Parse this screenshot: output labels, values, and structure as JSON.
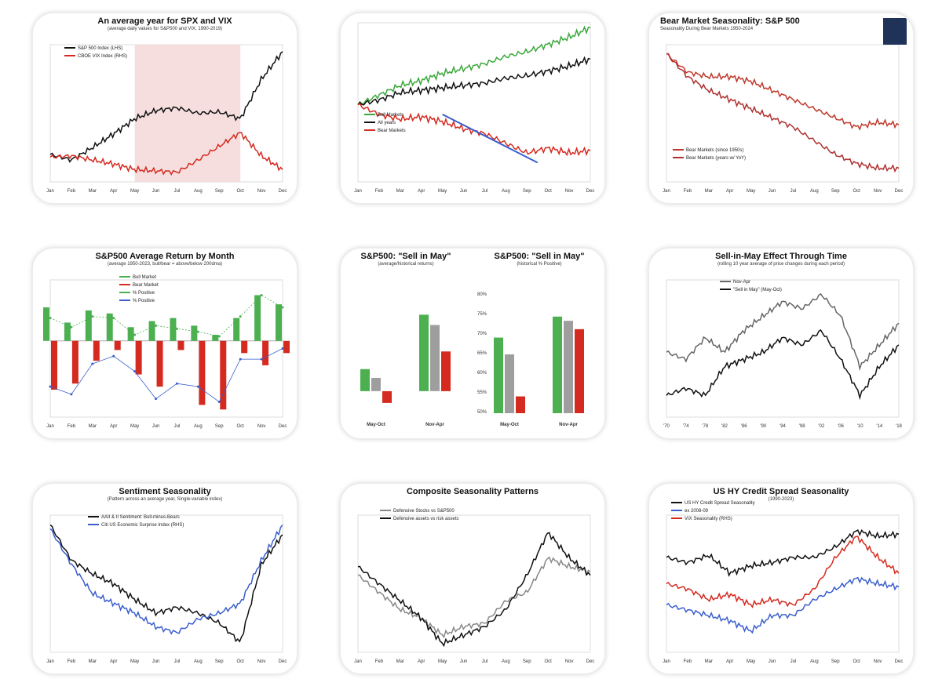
{
  "chart_data": [
    {
      "type": "line",
      "title": "An average year for SPX and VIX",
      "subtitle": "(average daily values for S&P500 and VIX, 1990-2019)",
      "categories": [
        "Jan",
        "Feb",
        "Mar",
        "Apr",
        "May",
        "Jun",
        "Jul",
        "Aug",
        "Sep",
        "Oct",
        "Nov",
        "Dec"
      ],
      "shaded": [
        "May",
        "Oct"
      ],
      "shade_color": "#f6dede",
      "series": [
        {
          "name": "S&P 500 Index (LHS)",
          "color": "#111111",
          "values": [
            100,
            99.6,
            100.5,
            101.5,
            102.6,
            103.2,
            103.4,
            103.0,
            103.1,
            102.6,
            105.5,
            107.5
          ]
        },
        {
          "name": "CBOE VIX Index (RHS)",
          "color": "#d42a1f",
          "values": [
            99.8,
            99.9,
            99.6,
            99.3,
            98.9,
            98.8,
            98.7,
            99.6,
            100.6,
            101.6,
            99.9,
            98.9
          ]
        }
      ],
      "ylim": [
        98,
        108
      ]
    },
    {
      "type": "line",
      "title": "",
      "subtitle": "",
      "categories": [
        "Jan",
        "Feb",
        "Mar",
        "Apr",
        "May",
        "Jun",
        "Jul",
        "Aug",
        "Sep",
        "Oct",
        "Nov",
        "Dec"
      ],
      "arrow": true,
      "series": [
        {
          "name": "Bull Markets",
          "color": "#3aa83a",
          "values": [
            100,
            102,
            104,
            105,
            106.5,
            107.5,
            108.5,
            110,
            111,
            112.5,
            114,
            116
          ]
        },
        {
          "name": "All years",
          "color": "#111111",
          "values": [
            100,
            101,
            102.5,
            103,
            103.5,
            104,
            104.5,
            105.5,
            106,
            107,
            108,
            109.5
          ]
        },
        {
          "name": "Bear Markets",
          "color": "#d42a1f",
          "values": [
            100,
            98,
            97,
            97.5,
            96.5,
            95,
            94,
            92,
            90,
            91,
            90,
            90.5
          ]
        }
      ],
      "ylim": [
        84,
        117
      ]
    },
    {
      "type": "line",
      "title": "Bear Market Seasonality: S&P 500",
      "subtitle": "Seasonality During Bear Markets 1950-2024",
      "left": true,
      "logo": true,
      "categories": [
        "Jan",
        "Feb",
        "Mar",
        "Apr",
        "May",
        "Jun",
        "Jul",
        "Aug",
        "Sep",
        "Oct",
        "Nov",
        "Dec"
      ],
      "series": [
        {
          "name": "Bear Markets (since 1950s)",
          "color": "#c0392b",
          "values": [
            100,
            96,
            95,
            95,
            94,
            92,
            90,
            88,
            86,
            84,
            85,
            84.5
          ]
        },
        {
          "name": "Bear Markets (years w/ YoY)",
          "color": "#b03030",
          "values": [
            100,
            95,
            92,
            90,
            88,
            86,
            84,
            81,
            78,
            76,
            75,
            75
          ]
        }
      ],
      "ylim": [
        72,
        102
      ]
    },
    {
      "type": "bar",
      "title": "S&P500 Average Return by Month",
      "subtitle": "(average 1950-2023, bull/bear = above/below 200dma)",
      "categories": [
        "Jan",
        "Feb",
        "Mar",
        "Apr",
        "May",
        "Jun",
        "Jul",
        "Aug",
        "Sep",
        "Oct",
        "Nov",
        "Dec"
      ],
      "series": [
        {
          "name": "Bull Market",
          "color": "#4caf50",
          "values": [
            2.2,
            1.2,
            2.0,
            1.8,
            0.9,
            1.3,
            1.5,
            1.0,
            0.4,
            1.5,
            3.0,
            2.4
          ]
        },
        {
          "name": "Bear Market",
          "color": "#d42a1f",
          "values": [
            -3.2,
            -2.8,
            -1.3,
            -0.6,
            -2.2,
            -3.0,
            -0.6,
            -4.2,
            -4.5,
            -0.8,
            -1.6,
            -0.8
          ]
        },
        {
          "name": "% Positive",
          "color": "#4caf50",
          "line": true,
          "values": [
            1.5,
            0.9,
            1.6,
            1.5,
            0.4,
            1.0,
            0.8,
            0.6,
            0.3,
            1.6,
            3.0,
            2.2
          ]
        },
        {
          "name": "% Positive",
          "color": "#3a5fcd",
          "line": true,
          "values": [
            -3.0,
            -3.5,
            -1.5,
            -1.0,
            -2.0,
            -3.8,
            -2.8,
            -3.0,
            -4.0,
            -1.2,
            -1.2,
            -0.5
          ]
        }
      ],
      "ylim": [
        -5,
        4
      ]
    },
    {
      "type": "groupbar",
      "panels": [
        {
          "title": "S&P500: \"Sell in May\"",
          "subtitle": "(average/historical returns)",
          "categories": [
            "May-Oct",
            "Nov-Apr"
          ],
          "values": [
            [
              1.5,
              0.9,
              -0.8
            ],
            [
              5.2,
              4.5,
              2.7
            ]
          ],
          "ylim": [
            -1.5,
            6.5
          ]
        },
        {
          "title": "S&P500: \"Sell in May\"",
          "subtitle": "(historical % Positive)",
          "categories": [
            "May-Oct",
            "Nov-Apr"
          ],
          "values": [
            [
              70,
              66,
              56
            ],
            [
              75,
              74,
              72
            ]
          ],
          "ylim": [
            52,
            80
          ],
          "ticks": [
            "80%",
            "75%",
            "70%",
            "65%",
            "60%",
            "55%",
            "50%"
          ]
        }
      ],
      "colors": [
        "#4caf50",
        "#9e9e9e",
        "#d42a1f"
      ]
    },
    {
      "type": "line",
      "title": "Sell-in-May Effect Through Time",
      "subtitle": "(rolling 10 year average of price changes during each period)",
      "categories": [
        "'70",
        "'74",
        "'78",
        "'82",
        "'86",
        "'90",
        "'94",
        "'98",
        "'02",
        "'06",
        "'10",
        "'14",
        "'18"
      ],
      "series": [
        {
          "name": "Nov-Apr",
          "color": "#666666",
          "values": [
            3,
            2,
            5,
            3,
            6,
            8,
            10,
            9,
            11,
            8,
            1,
            4,
            7
          ]
        },
        {
          "name": "\"Sell in May\" (May-Oct)",
          "color": "#111111",
          "values": [
            -3,
            -2,
            -3,
            1,
            2,
            3,
            5,
            4,
            6,
            2,
            -3,
            1,
            4
          ]
        }
      ],
      "ylim": [
        -6,
        13
      ]
    },
    {
      "type": "line",
      "title": "Sentiment Seasonality",
      "subtitle": "(Pattern across an average year, Single-variable index)",
      "categories": [
        "Jan",
        "Feb",
        "Mar",
        "Apr",
        "May",
        "Jun",
        "Jul",
        "Aug",
        "Sep",
        "Oct",
        "Nov",
        "Dec"
      ],
      "series": [
        {
          "name": "AAII & II Sentiment: Bull-minus-Bears",
          "color": "#111111",
          "values": [
            30,
            12,
            5,
            0,
            -8,
            -15,
            -12,
            -15,
            -20,
            -30,
            10,
            25
          ]
        },
        {
          "name": "Citi US Economic Surprise Index (RHS)",
          "color": "#3a5fcd",
          "values": [
            28,
            10,
            -5,
            -10,
            -15,
            -22,
            -25,
            -18,
            -15,
            -10,
            12,
            30
          ]
        }
      ],
      "ylim": [
        -35,
        35
      ]
    },
    {
      "type": "line",
      "title": "Composite Seasonality Patterns",
      "subtitle": "",
      "categories": [
        "Jan",
        "Feb",
        "Mar",
        "Apr",
        "May",
        "Jun",
        "Jul",
        "Aug",
        "Sep",
        "Oct",
        "Nov",
        "Dec"
      ],
      "series": [
        {
          "name": "Defensive Stocks vs S&P500",
          "color": "#888888",
          "values": [
            1,
            0,
            -1,
            -1.5,
            -2.5,
            -2,
            -1.8,
            -0.5,
            0,
            2,
            1.5,
            1.2
          ]
        },
        {
          "name": "Defensive assets vs risk assets",
          "color": "#111111",
          "values": [
            1.5,
            0.5,
            -0.5,
            -1.5,
            -3,
            -2.5,
            -2,
            -1,
            1,
            3.5,
            2,
            1
          ]
        }
      ],
      "ylim": [
        -3.5,
        4.5
      ]
    },
    {
      "type": "line",
      "title": "US HY Credit Spread Seasonality",
      "subtitle": "(1990-2023)",
      "categories": [
        "Jan",
        "Feb",
        "Mar",
        "Apr",
        "May",
        "Jun",
        "Jul",
        "Aug",
        "Sep",
        "Oct",
        "Nov",
        "Dec"
      ],
      "series": [
        {
          "name": "US HY Credit Spread Seasonality",
          "color": "#111111",
          "values": [
            0.1,
            0.05,
            0.12,
            -0.05,
            0.02,
            0.05,
            0.1,
            0.1,
            0.2,
            0.35,
            0.3,
            0.32
          ]
        },
        {
          "name": "ex 2008-09",
          "color": "#3a5fcd",
          "values": [
            -0.35,
            -0.4,
            -0.45,
            -0.5,
            -0.6,
            -0.45,
            -0.45,
            -0.3,
            -0.2,
            -0.1,
            -0.15,
            -0.18
          ]
        },
        {
          "name": "VIX Seasonality (RHS)",
          "color": "#d42a1f",
          "values": [
            -0.15,
            -0.2,
            -0.3,
            -0.25,
            -0.35,
            -0.3,
            -0.35,
            -0.2,
            0.1,
            0.3,
            0.1,
            -0.05
          ]
        }
      ],
      "ylim": [
        -0.8,
        0.5
      ]
    }
  ]
}
